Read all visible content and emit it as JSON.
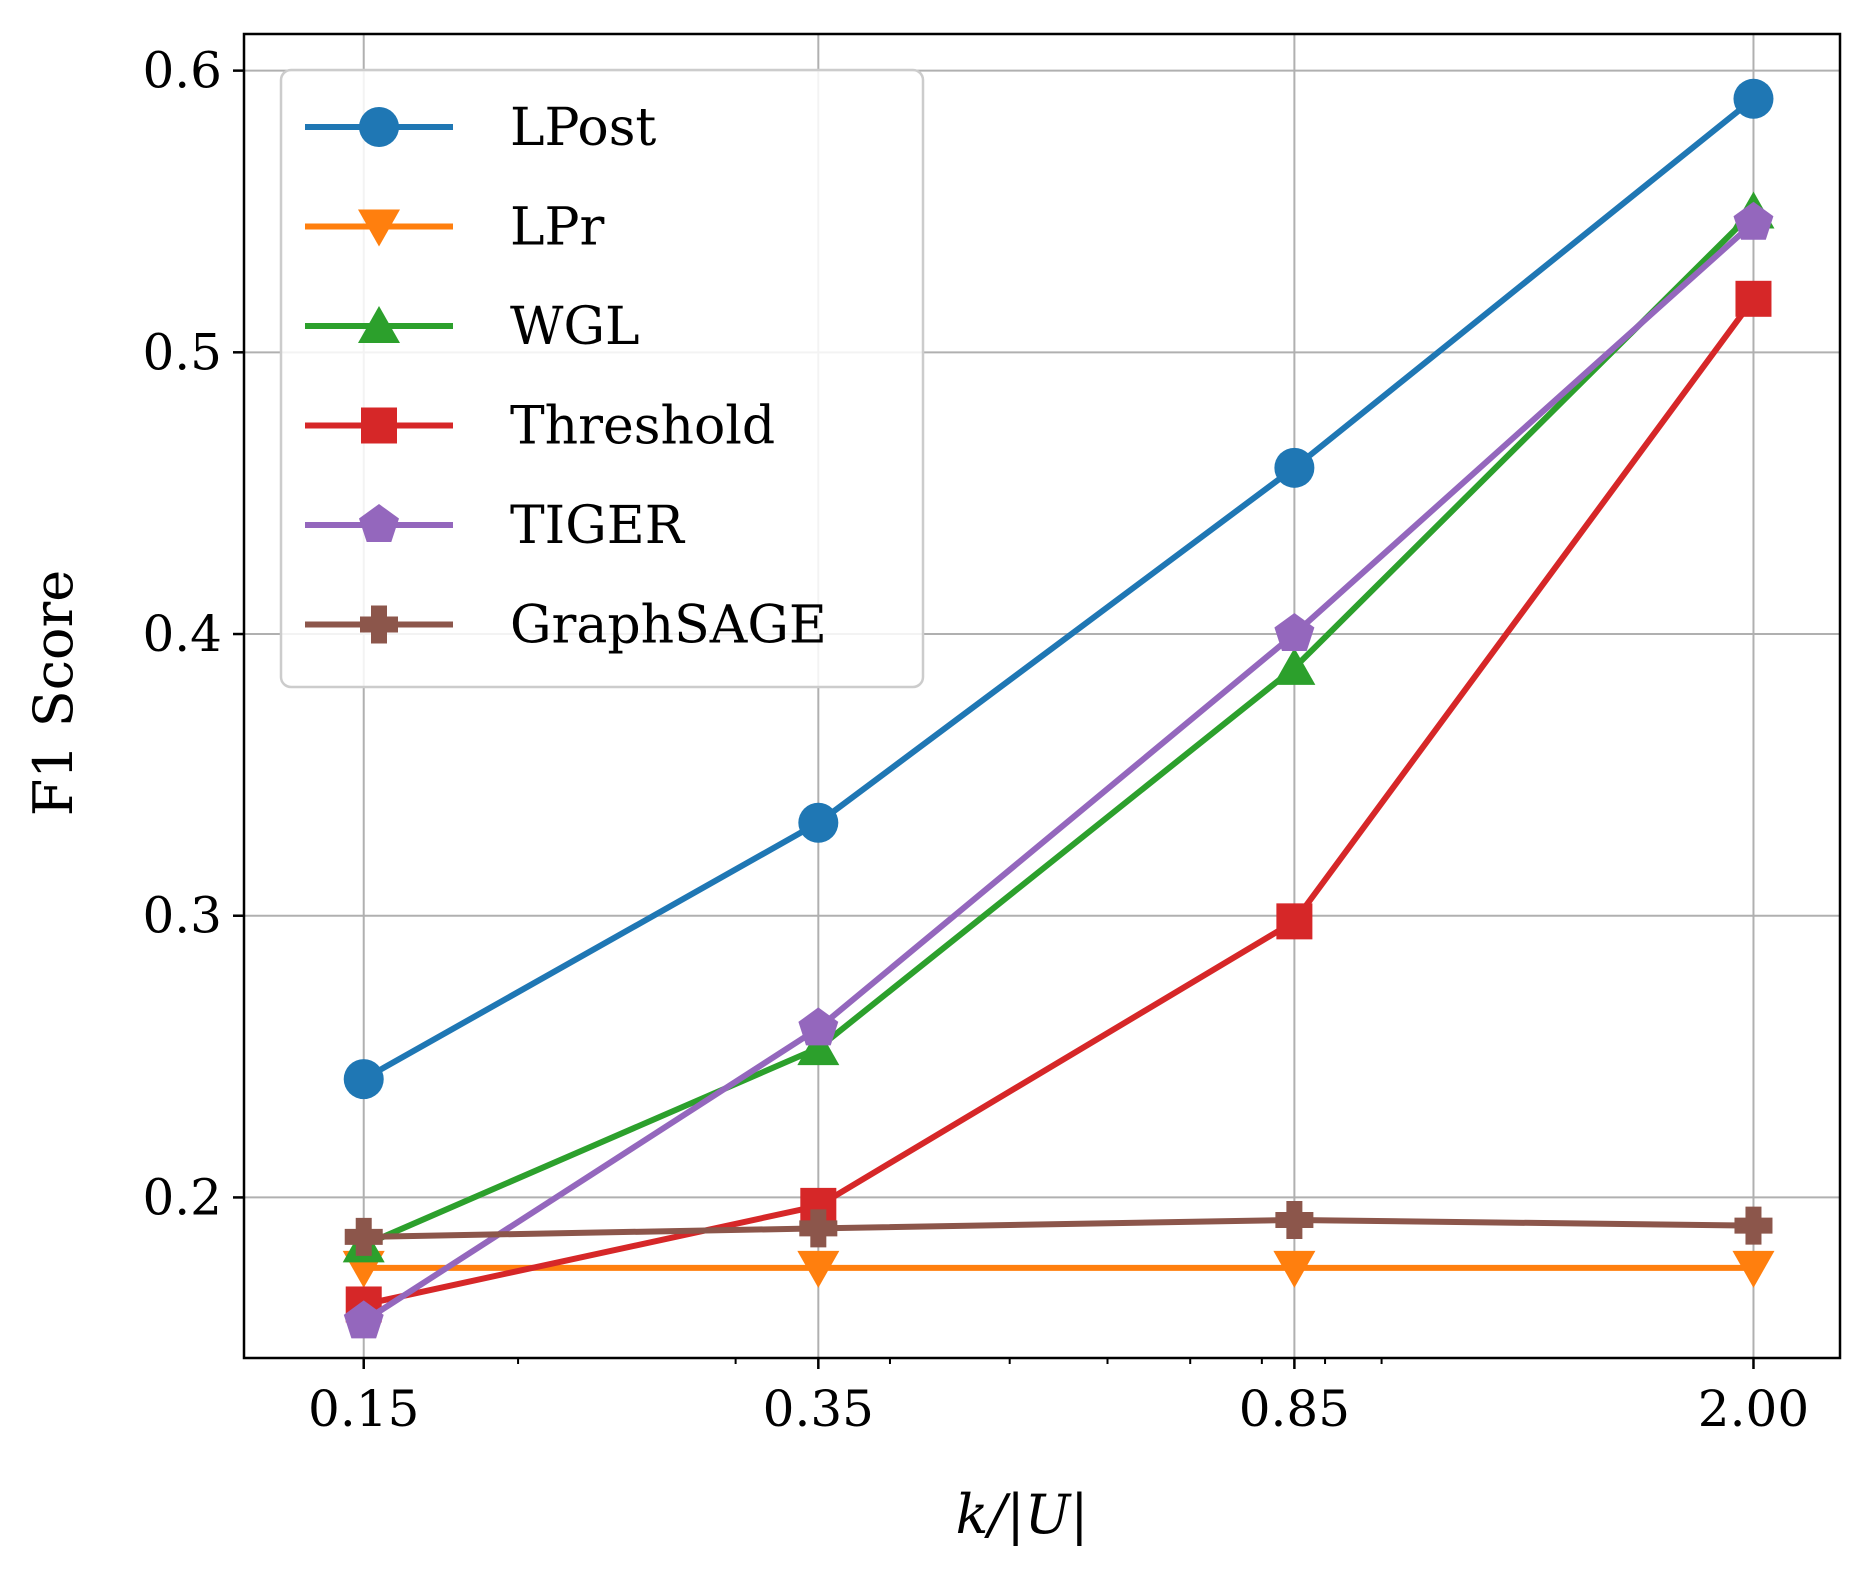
{
  "chart_data": {
    "type": "line",
    "title": "",
    "xlabel": "k/|U|",
    "ylabel": "F1 Score",
    "xscale": "log",
    "x": [
      0.15,
      0.35,
      0.85,
      2.0
    ],
    "x_tick_labels": [
      "0.15",
      "0.35",
      "0.85",
      "2.00"
    ],
    "xlim": [
      0.12,
      2.35
    ],
    "ylim": [
      0.143,
      0.613
    ],
    "y_ticks": [
      0.2,
      0.3,
      0.4,
      0.5,
      0.6
    ],
    "y_tick_labels": [
      "0.2",
      "0.3",
      "0.4",
      "0.5",
      "0.6"
    ],
    "grid": true,
    "legend_position": "upper-left",
    "series": [
      {
        "name": "LPost",
        "color": "#1f77b4",
        "marker": "circle",
        "values": [
          0.242,
          0.333,
          0.459,
          0.59
        ]
      },
      {
        "name": "LPr",
        "color": "#ff7f0e",
        "marker": "triangle-down",
        "values": [
          0.175,
          0.175,
          0.175,
          0.175
        ]
      },
      {
        "name": "WGL",
        "color": "#2ca02c",
        "marker": "triangle-up",
        "values": [
          0.183,
          0.253,
          0.388,
          0.55
        ]
      },
      {
        "name": "Threshold",
        "color": "#d62728",
        "marker": "square",
        "values": [
          0.162,
          0.197,
          0.298,
          0.519
        ]
      },
      {
        "name": "TIGER",
        "color": "#9467bd",
        "marker": "pentagon",
        "values": [
          0.156,
          0.26,
          0.4,
          0.546
        ]
      },
      {
        "name": "GraphSAGE",
        "color": "#8c564b",
        "marker": "plus",
        "values": [
          0.186,
          0.189,
          0.192,
          0.19
        ]
      }
    ]
  }
}
